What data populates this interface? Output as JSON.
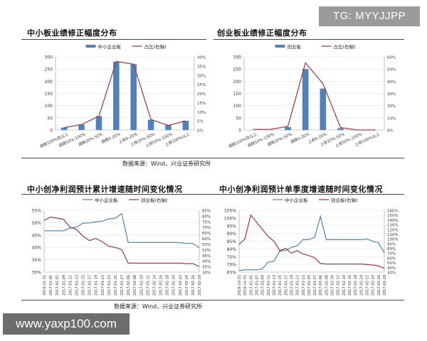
{
  "watermark_top": "TG: MYYJJPP",
  "watermark_bottom": "www.yaxp100.com",
  "source_text": "数据来源：Wind，兴业证券研究所",
  "colors": {
    "bar": "#4f81bd",
    "red_line": "#a0444a",
    "blue_line": "#5b8bb0"
  },
  "chart_data": [
    {
      "type": "bar",
      "title": "中小板业绩修正幅度分布",
      "categories": [
        "调降100%及以上",
        "调降50%-100%",
        "调降20%-50%",
        "调降0-20%",
        "上修0-20%",
        "上修20%-50%",
        "上修50%-100%",
        "上修100%以上"
      ],
      "series": [
        {
          "name": "中小企业板",
          "type": "bar",
          "axis": "left",
          "values": [
            10,
            22,
            57,
            280,
            270,
            42,
            20,
            38
          ]
        },
        {
          "name": "占比(右轴)",
          "type": "line",
          "axis": "right",
          "values": [
            1.3,
            3,
            7.5,
            37.5,
            36,
            5.8,
            2.5,
            5
          ]
        }
      ],
      "ylim": [
        0,
        300
      ],
      "yticks": [
        "0",
        "50",
        "100",
        "150",
        "200",
        "250",
        "300"
      ],
      "y2lim": [
        0,
        40
      ],
      "y2ticks": [
        "0%",
        "5%",
        "10%",
        "15%",
        "20%",
        "25%",
        "30%",
        "35%",
        "40%"
      ],
      "legend": "top"
    },
    {
      "type": "bar",
      "title": "创业板业绩修正幅度分布",
      "categories": [
        "调降100%及以上",
        "调降50%-100%",
        "调降20%-50%",
        "调降0-20%",
        "上修0-20%",
        "上修20%-50%",
        "上修50%-100%",
        "上修100%以上"
      ],
      "series": [
        {
          "name": "创业板",
          "type": "bar",
          "axis": "left",
          "values": [
            0,
            0,
            12,
            250,
            170,
            7,
            0,
            0
          ]
        },
        {
          "name": "占比(右轴)",
          "type": "line",
          "axis": "right",
          "values": [
            0.5,
            0.5,
            3,
            55,
            38,
            2,
            0,
            0
          ]
        }
      ],
      "ylim": [
        0,
        300
      ],
      "yticks": [
        "0",
        "50",
        "100",
        "150",
        "200",
        "250",
        "300"
      ],
      "y2lim": [
        0,
        60
      ],
      "y2ticks": [
        "0%",
        "10%",
        "20%",
        "30%",
        "40%",
        "50%",
        "60%"
      ],
      "legend": "top"
    },
    {
      "type": "line",
      "title": "中小创净利润预计累计增速随时间变化情况",
      "categories": [
        "2016-12-31",
        "2017-01-05",
        "2017-01-07",
        "2017-01-09",
        "2017-01-11",
        "2017-01-13",
        "2017-01-15",
        "2017-01-17",
        "2017-01-19",
        "2017-01-21",
        "2017-01-23",
        "2017-01-25",
        "2017-01-27",
        "2017-02-06",
        "2017-02-08",
        "2017-02-10",
        "2017-02-12",
        "2017-02-14",
        "2017-02-16",
        "2017-02-18",
        "2017-02-20",
        "2017-02-22",
        "2017-02-24",
        "2017-02-26",
        "2017-02-28"
      ],
      "series": [
        {
          "name": "中小企业板",
          "axis": "left",
          "values": [
            46.7,
            46.7,
            46.7,
            46.7,
            47.8,
            48.2,
            49.8,
            49.9,
            50.3,
            50.6,
            51.5,
            51.8,
            53.6,
            42,
            42,
            42,
            42,
            42,
            42,
            42,
            42,
            41.9,
            41.6,
            41.6,
            39.8
          ]
        },
        {
          "name": "创业板(右轴)",
          "axis": "right",
          "values": [
            76,
            79,
            78,
            77,
            70,
            68,
            62,
            58,
            60,
            57,
            53,
            52,
            50,
            38,
            38,
            38,
            38,
            38,
            38,
            38,
            38,
            38,
            37.5,
            37.5,
            35
          ]
        }
      ],
      "ylim": [
        30,
        55
      ],
      "yticks": [
        "30%",
        "35%",
        "40%",
        "45%",
        "50%",
        "55%"
      ],
      "y2lim": [
        30,
        85
      ],
      "y2ticks": [
        "30%",
        "35%",
        "40%",
        "45%",
        "50%",
        "55%",
        "60%",
        "65%",
        "70%",
        "75%",
        "80%",
        "85%"
      ],
      "legend": "top"
    },
    {
      "type": "line",
      "title": "中小创净利润预计单季度增速随时间变化情况",
      "categories": [
        "2016-10-31",
        "2016-12-31",
        "2017-01-05",
        "2017-01-07",
        "2017-01-09",
        "2017-01-11",
        "2017-01-13",
        "2017-01-15",
        "2017-01-17",
        "2017-01-19",
        "2017-01-21",
        "2017-01-23",
        "2017-01-25",
        "2017-01-27",
        "2017-02-06",
        "2017-02-08",
        "2017-02-10",
        "2017-02-12",
        "2017-02-14",
        "2017-02-16",
        "2017-02-18",
        "2017-02-20",
        "2017-02-22",
        "2017-02-24",
        "2017-02-26",
        "2017-02-28"
      ],
      "series": [
        {
          "name": "中小企业板",
          "axis": "left",
          "values": [
            66,
            66.5,
            66.5,
            66.5,
            67,
            71.5,
            72,
            78.5,
            79,
            81,
            82,
            86,
            86,
            87.5,
            101,
            86,
            86,
            86,
            86,
            86,
            86,
            86,
            86.5,
            85,
            84,
            77.5
          ]
        },
        {
          "name": "创业板(右轴)",
          "axis": "right",
          "values": [
            88,
            100,
            150,
            135,
            120,
            105,
            95,
            75,
            80,
            70,
            75,
            68,
            65,
            60,
            48,
            47,
            47,
            47,
            47,
            47,
            47,
            47,
            46,
            45,
            43,
            38
          ]
        }
      ],
      "ylim": [
        65,
        105
      ],
      "yticks": [
        "65%",
        "70%",
        "75%",
        "80%",
        "85%",
        "90%",
        "95%",
        "100%",
        "105%"
      ],
      "y2lim": [
        30,
        160
      ],
      "y2ticks": [
        "30%",
        "40%",
        "50%",
        "60%",
        "70%",
        "80%",
        "90%",
        "100%",
        "110%",
        "120%",
        "130%",
        "140%",
        "150%",
        "160%"
      ],
      "legend": "top"
    }
  ]
}
